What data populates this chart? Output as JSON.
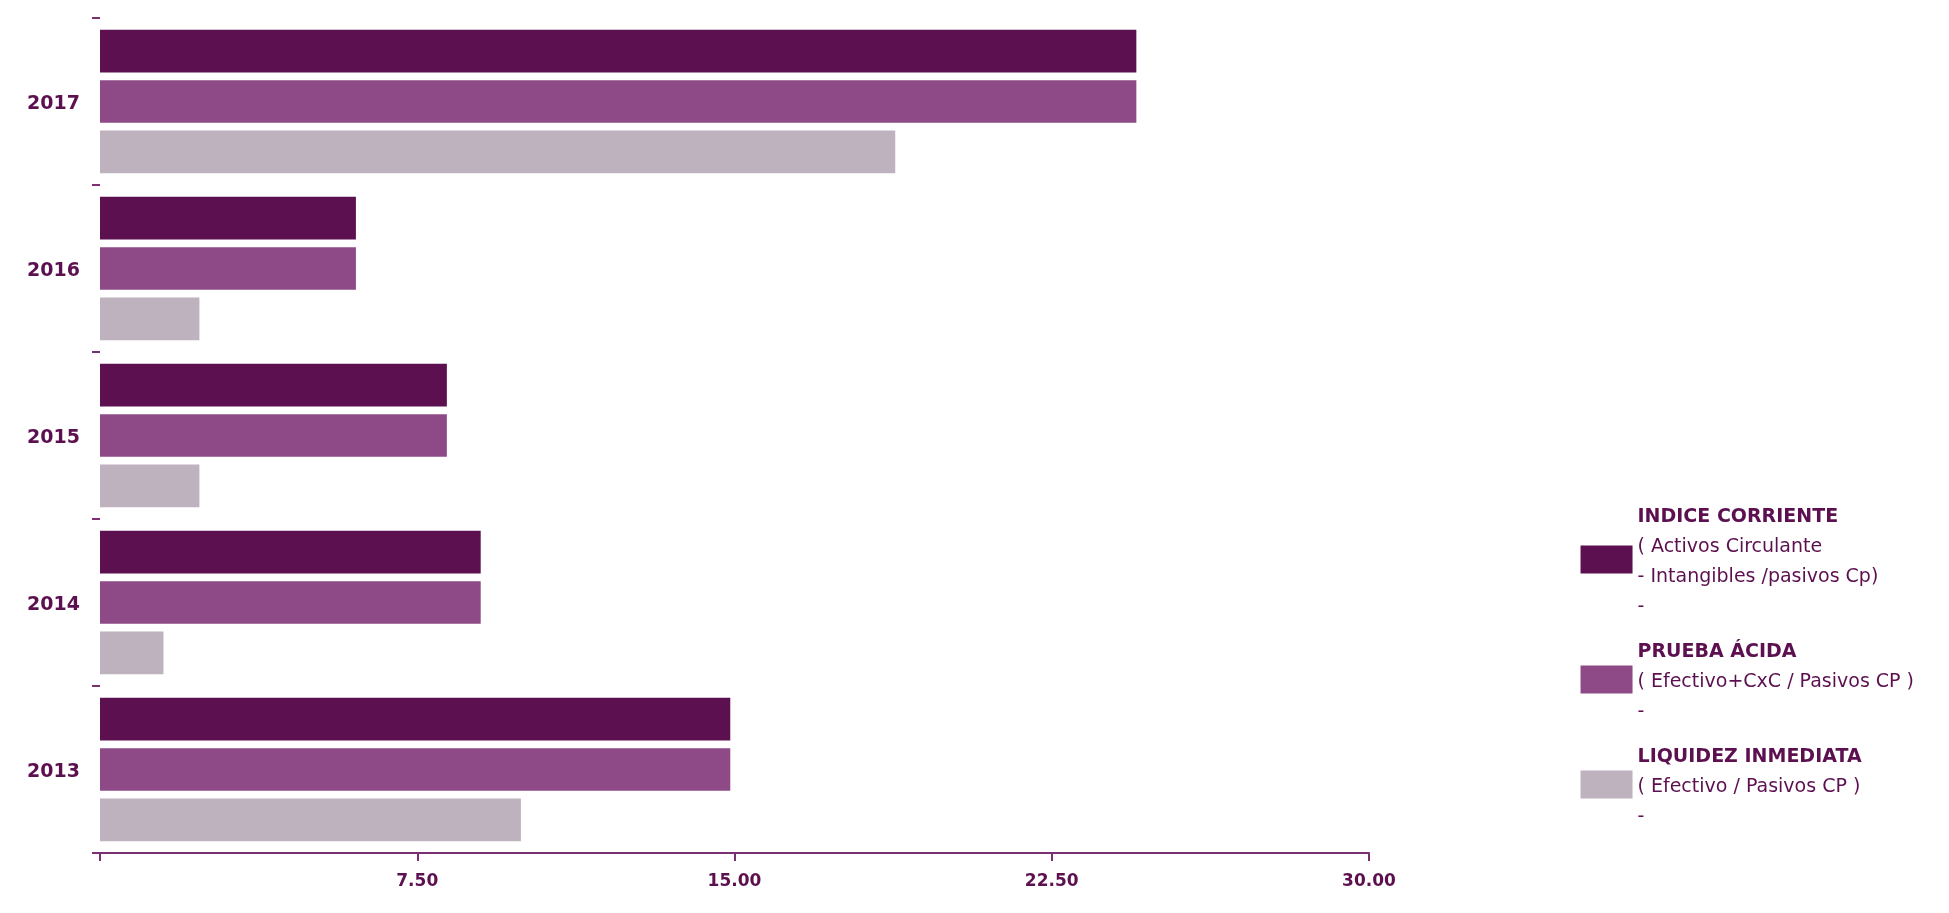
{
  "chart_data": {
    "type": "bar",
    "orientation": "horizontal",
    "categories": [
      "2017",
      "2016",
      "2015",
      "2014",
      "2013"
    ],
    "series": [
      {
        "name": "INDICE CORRIENTE\n( Activos Circulante\n- Intangibles /pasivos Cp)\n-",
        "color": "#5c1050",
        "values": [
          24.5,
          6.05,
          8.2,
          9.0,
          14.9
        ]
      },
      {
        "name": "PRUEBA ÁCIDA\n( Efectivo+CxC / Pasivos CP )\n-",
        "color": "#8e4a86",
        "values": [
          24.5,
          6.05,
          8.2,
          9.0,
          14.9
        ]
      },
      {
        "name": "LIQUIDEZ INMEDIATA\n( Efectivo / Pasivos CP )\n-",
        "color": "#bdb2bd",
        "values": [
          18.8,
          2.35,
          2.35,
          1.5,
          9.95
        ]
      }
    ],
    "xlim": [
      0,
      30
    ],
    "xticks": [
      {
        "value": 0,
        "label": null
      },
      {
        "value": 7.5,
        "label": "7.50"
      },
      {
        "value": 15,
        "label": "15.00"
      },
      {
        "value": 22.5,
        "label": "22.50"
      },
      {
        "value": 30,
        "label": "30.00"
      }
    ],
    "grid": false,
    "legend": "right"
  }
}
